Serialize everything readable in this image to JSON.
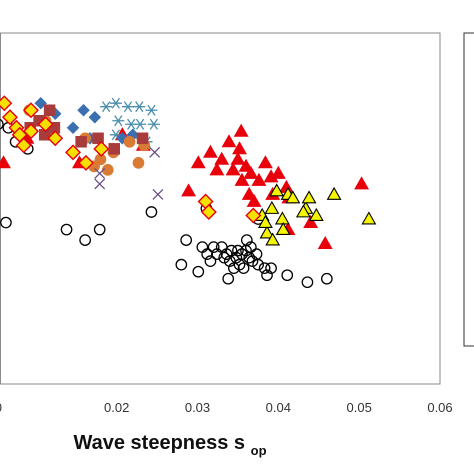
{
  "chart_data": {
    "type": "scatter",
    "title": "",
    "xlabel": "Wave steepness s",
    "xlabel_subscript": "op",
    "ylabel": "",
    "xlim": [
      0.0,
      0.06
    ],
    "x_ticks": [
      {
        "value": 0.02,
        "label": "0.02"
      },
      {
        "value": 0.03,
        "label": "0.03"
      },
      {
        "value": 0.04,
        "label": "0.04"
      },
      {
        "value": 0.05,
        "label": "0.05"
      },
      {
        "value": 0.06,
        "label": "0.06"
      }
    ],
    "x_edge_label": "0",
    "y_norm_range": [
      0.0,
      1.0
    ],
    "grid": false,
    "legend": "right, clipped",
    "series": [
      {
        "marker": "circle-open",
        "color": "#000000",
        "fill": "none",
        "points": [
          [
            0.0063,
            0.46
          ],
          [
            0.0138,
            0.44
          ],
          [
            0.0161,
            0.41
          ],
          [
            0.0179,
            0.44
          ],
          [
            0.0243,
            0.49
          ],
          [
            0.028,
            0.34
          ],
          [
            0.0301,
            0.32
          ],
          [
            0.0306,
            0.39
          ],
          [
            0.0312,
            0.37
          ],
          [
            0.0316,
            0.35
          ],
          [
            0.032,
            0.39
          ],
          [
            0.0324,
            0.37
          ],
          [
            0.033,
            0.39
          ],
          [
            0.0333,
            0.36
          ],
          [
            0.0336,
            0.37
          ],
          [
            0.034,
            0.35
          ],
          [
            0.0342,
            0.38
          ],
          [
            0.0345,
            0.33
          ],
          [
            0.0348,
            0.36
          ],
          [
            0.035,
            0.38
          ],
          [
            0.0352,
            0.34
          ],
          [
            0.0355,
            0.37
          ],
          [
            0.0357,
            0.33
          ],
          [
            0.036,
            0.38
          ],
          [
            0.0361,
            0.41
          ],
          [
            0.0364,
            0.36
          ],
          [
            0.0366,
            0.39
          ],
          [
            0.0368,
            0.35
          ],
          [
            0.0373,
            0.37
          ],
          [
            0.0375,
            0.34
          ],
          [
            0.0383,
            0.33
          ],
          [
            0.0386,
            0.31
          ],
          [
            0.0391,
            0.33
          ],
          [
            0.0411,
            0.31
          ],
          [
            0.0436,
            0.29
          ],
          [
            0.046,
            0.3
          ],
          [
            0.0338,
            0.3
          ],
          [
            0.0286,
            0.41
          ],
          [
            0.0311,
            0.5
          ],
          [
            0.0375,
            0.47
          ],
          [
            0.0066,
            0.73
          ],
          [
            0.0075,
            0.69
          ],
          [
            0.009,
            0.67
          ],
          [
            0.0031,
            0.72
          ],
          [
            0.0053,
            0.74
          ]
        ]
      },
      {
        "marker": "triangle-filled",
        "color": "#e8000b",
        "fill": "#e8000b",
        "points": [
          [
            0.006,
            0.63
          ],
          [
            0.0089,
            0.7
          ],
          [
            0.0154,
            0.63
          ],
          [
            0.0207,
            0.71
          ],
          [
            0.0233,
            0.68
          ],
          [
            0.0289,
            0.55
          ],
          [
            0.0301,
            0.63
          ],
          [
            0.0316,
            0.66
          ],
          [
            0.0324,
            0.61
          ],
          [
            0.033,
            0.64
          ],
          [
            0.0339,
            0.69
          ],
          [
            0.0344,
            0.61
          ],
          [
            0.035,
            0.64
          ],
          [
            0.0355,
            0.58
          ],
          [
            0.036,
            0.62
          ],
          [
            0.0366,
            0.6
          ],
          [
            0.0376,
            0.58
          ],
          [
            0.0384,
            0.63
          ],
          [
            0.0391,
            0.59
          ],
          [
            0.04,
            0.6
          ],
          [
            0.041,
            0.56
          ],
          [
            0.044,
            0.46
          ],
          [
            0.0458,
            0.4
          ],
          [
            0.0503,
            0.57
          ],
          [
            0.0352,
            0.67
          ],
          [
            0.037,
            0.52
          ],
          [
            0.0393,
            0.54
          ],
          [
            0.0412,
            0.44
          ],
          [
            0.0413,
            0.53
          ],
          [
            0.0354,
            0.72
          ],
          [
            0.0364,
            0.54
          ]
        ]
      },
      {
        "marker": "triangle-yellow",
        "color": "#000000",
        "fill": "#f5f500",
        "points": [
          [
            0.0398,
            0.55
          ],
          [
            0.0412,
            0.54
          ],
          [
            0.038,
            0.48
          ],
          [
            0.0405,
            0.47
          ],
          [
            0.0434,
            0.5
          ],
          [
            0.0447,
            0.48
          ],
          [
            0.0418,
            0.53
          ],
          [
            0.0469,
            0.54
          ],
          [
            0.0512,
            0.47
          ],
          [
            0.0386,
            0.43
          ],
          [
            0.0393,
            0.41
          ],
          [
            0.0406,
            0.44
          ],
          [
            0.0392,
            0.5
          ],
          [
            0.0384,
            0.46
          ],
          [
            0.0438,
            0.53
          ],
          [
            0.0431,
            0.49
          ]
        ]
      },
      {
        "marker": "star",
        "color": "#4b8fad",
        "fill": "none",
        "points": [
          [
            0.0187,
            0.79
          ],
          [
            0.0199,
            0.8
          ],
          [
            0.0214,
            0.79
          ],
          [
            0.0228,
            0.79
          ],
          [
            0.0243,
            0.78
          ],
          [
            0.0202,
            0.75
          ],
          [
            0.0218,
            0.74
          ],
          [
            0.0229,
            0.74
          ],
          [
            0.0246,
            0.74
          ],
          [
            0.0199,
            0.71
          ],
          [
            0.0231,
            0.7
          ],
          [
            0.0237,
            0.69
          ]
        ]
      },
      {
        "marker": "diamond-filled",
        "color": "#3a6fb0",
        "fill": "#3a6fb0",
        "points": [
          [
            0.0106,
            0.8
          ],
          [
            0.0159,
            0.78
          ],
          [
            0.0173,
            0.76
          ],
          [
            0.0146,
            0.73
          ],
          [
            0.0167,
            0.7
          ],
          [
            0.0207,
            0.7
          ],
          [
            0.022,
            0.71
          ],
          [
            0.0124,
            0.77
          ]
        ]
      },
      {
        "marker": "circle-filled",
        "color": "#d97b35",
        "fill": "#d97b35",
        "points": [
          [
            0.0092,
            0.78
          ],
          [
            0.0121,
            0.72
          ],
          [
            0.018,
            0.64
          ],
          [
            0.0189,
            0.61
          ],
          [
            0.0196,
            0.66
          ],
          [
            0.0216,
            0.69
          ],
          [
            0.0227,
            0.63
          ],
          [
            0.0234,
            0.68
          ],
          [
            0.0161,
            0.7
          ],
          [
            0.0172,
            0.62
          ],
          [
            0.0112,
            0.75
          ]
        ]
      },
      {
        "marker": "square-filled",
        "color": "#a83c3c",
        "fill": "#a83c3c",
        "points": [
          [
            0.0093,
            0.73
          ],
          [
            0.0104,
            0.75
          ],
          [
            0.0111,
            0.71
          ],
          [
            0.0123,
            0.73
          ],
          [
            0.0156,
            0.69
          ],
          [
            0.0177,
            0.7
          ],
          [
            0.0197,
            0.67
          ],
          [
            0.0232,
            0.7
          ],
          [
            0.0117,
            0.78
          ]
        ]
      },
      {
        "marker": "diamond-yellow",
        "color": "#e8000b",
        "fill": "#f5e000",
        "points": [
          [
            0.0061,
            0.8
          ],
          [
            0.0068,
            0.76
          ],
          [
            0.0076,
            0.73
          ],
          [
            0.008,
            0.71
          ],
          [
            0.0085,
            0.68
          ],
          [
            0.0094,
            0.72
          ],
          [
            0.0112,
            0.74
          ],
          [
            0.0124,
            0.7
          ],
          [
            0.0146,
            0.66
          ],
          [
            0.0162,
            0.63
          ],
          [
            0.0181,
            0.67
          ],
          [
            0.031,
            0.52
          ],
          [
            0.0314,
            0.49
          ],
          [
            0.0369,
            0.48
          ],
          [
            0.0094,
            0.78
          ]
        ]
      },
      {
        "marker": "x",
        "color": "#6b4c8a",
        "fill": "none",
        "points": [
          [
            0.0179,
            0.6
          ],
          [
            0.0179,
            0.57
          ],
          [
            0.0247,
            0.66
          ],
          [
            0.0251,
            0.54
          ]
        ]
      }
    ]
  }
}
